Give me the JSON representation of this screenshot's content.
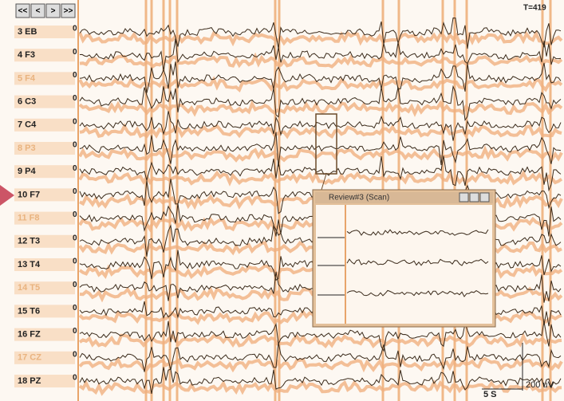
{
  "toolbar": {
    "buttons": [
      "<<",
      "<",
      ">",
      ">>"
    ],
    "time": "T=419"
  },
  "channels": [
    {
      "label": "3 EB",
      "marker": "0"
    },
    {
      "label": "4 F3",
      "marker": "0"
    },
    {
      "label": "5 F4",
      "marker": "0"
    },
    {
      "label": "6 C3",
      "marker": "0"
    },
    {
      "label": "7 C4",
      "marker": "0"
    },
    {
      "label": "8 P3",
      "marker": "0"
    },
    {
      "label": "9 P4",
      "marker": "0"
    },
    {
      "label": "10 F7",
      "marker": "0"
    },
    {
      "label": "11 F8",
      "marker": "0"
    },
    {
      "label": "12 T3",
      "marker": "0"
    },
    {
      "label": "13 T4",
      "marker": "0"
    },
    {
      "label": "14 T5",
      "marker": "0"
    },
    {
      "label": "15 T6",
      "marker": "0"
    },
    {
      "label": "16 FZ",
      "marker": "0"
    },
    {
      "label": "17 CZ",
      "marker": "0"
    },
    {
      "label": "18 PZ",
      "marker": "0"
    }
  ],
  "popup": {
    "title": "Review#3 (Scan)"
  },
  "scale": {
    "time": "5 S",
    "amplitude": "200 uV"
  }
}
